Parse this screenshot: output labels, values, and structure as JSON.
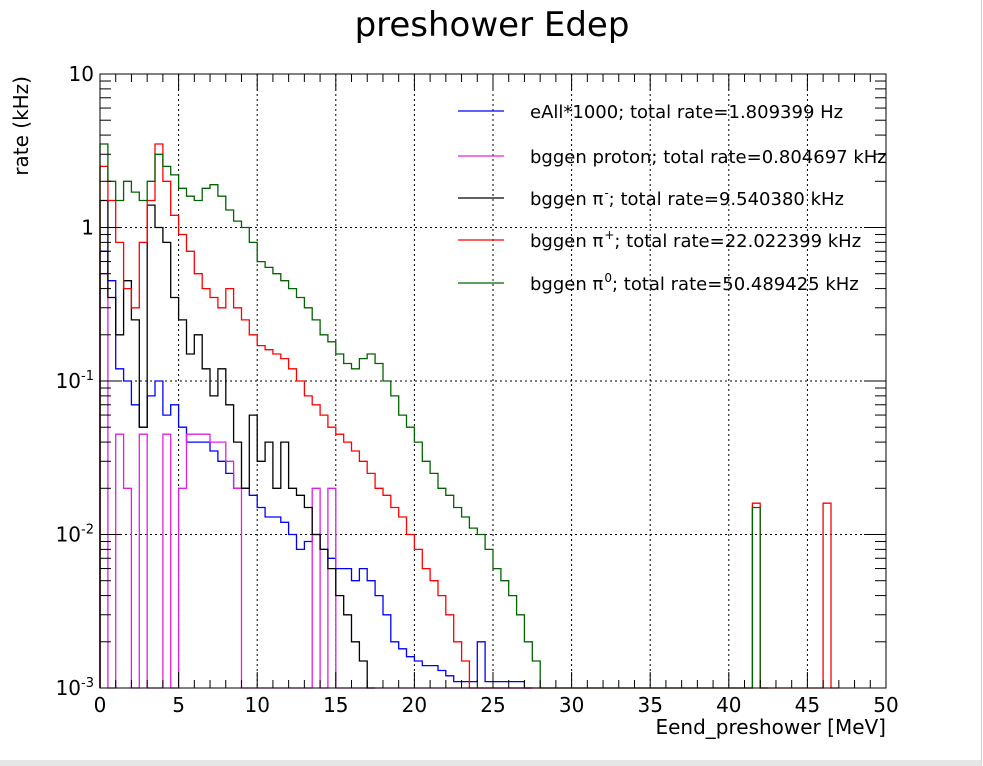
{
  "chart_data": {
    "type": "histogram",
    "title": "preshower Edep",
    "xlabel": "Eend_preshower [MeV]",
    "ylabel": "rate (kHz)",
    "xlim": [
      0,
      50
    ],
    "ylim": [
      0.001,
      10
    ],
    "yscale": "log",
    "grid": true,
    "legend_position": "top-right",
    "bin_width": 0.5,
    "x_ticks": [
      "0",
      "5",
      "10",
      "15",
      "20",
      "25",
      "30",
      "35",
      "40",
      "45",
      "50"
    ],
    "y_ticks": [
      {
        "value": 10,
        "base": "10",
        "exp": ""
      },
      {
        "value": 1,
        "base": "1",
        "exp": ""
      },
      {
        "value": 0.1,
        "base": "10",
        "exp": "-1"
      },
      {
        "value": 0.01,
        "base": "10",
        "exp": "-2"
      },
      {
        "value": 0.001,
        "base": "10",
        "exp": "-3"
      }
    ],
    "series": [
      {
        "name": "eAll*1000; total rate=1.809399 Hz",
        "label_parts": [
          [
            "eAll*1000; total rate=1.809399 Hz",
            ""
          ]
        ],
        "color": "#0000ff",
        "points": [
          [
            0.0,
            0.7
          ],
          [
            0.5,
            0.45
          ],
          [
            1.0,
            0.12
          ],
          [
            1.5,
            0.1
          ],
          [
            2.0,
            0.07
          ],
          [
            2.5,
            0.05
          ],
          [
            3.0,
            0.08
          ],
          [
            3.5,
            0.1
          ],
          [
            4.0,
            0.06
          ],
          [
            4.5,
            0.07
          ],
          [
            5.0,
            0.05
          ],
          [
            5.5,
            0.04
          ],
          [
            6.0,
            0.04
          ],
          [
            6.5,
            0.04
          ],
          [
            7.0,
            0.035
          ],
          [
            7.5,
            0.03
          ],
          [
            8.0,
            0.025
          ],
          [
            8.5,
            0.02
          ],
          [
            9.0,
            0.02
          ],
          [
            9.5,
            0.018
          ],
          [
            10.0,
            0.015
          ],
          [
            10.5,
            0.013
          ],
          [
            11.0,
            0.013
          ],
          [
            11.5,
            0.012
          ],
          [
            12.0,
            0.01
          ],
          [
            12.5,
            0.008
          ],
          [
            13.0,
            0.009
          ],
          [
            13.5,
            0.01
          ],
          [
            14.0,
            0.008
          ],
          [
            14.5,
            0.007
          ],
          [
            15.0,
            0.006
          ],
          [
            15.5,
            0.006
          ],
          [
            16.0,
            0.005
          ],
          [
            16.5,
            0.006
          ],
          [
            17.0,
            0.005
          ],
          [
            17.5,
            0.004
          ],
          [
            18.0,
            0.003
          ],
          [
            18.5,
            0.002
          ],
          [
            19.0,
            0.0018
          ],
          [
            19.5,
            0.0016
          ],
          [
            20.0,
            0.0015
          ],
          [
            20.5,
            0.0014
          ],
          [
            21.0,
            0.0014
          ],
          [
            21.5,
            0.0013
          ],
          [
            22.0,
            0.0012
          ],
          [
            22.5,
            0.0011
          ],
          [
            23.0,
            0.0011
          ],
          [
            23.5,
            0.0011
          ],
          [
            24.0,
            0.002
          ],
          [
            24.5,
            0.0011
          ],
          [
            25.0,
            0.0011
          ],
          [
            25.5,
            0.0011
          ],
          [
            26.0,
            0.0011
          ],
          [
            26.5,
            0.0011
          ],
          [
            27.0,
            0
          ]
        ]
      },
      {
        "name": "bggen proton; total rate=0.804697 kHz",
        "label_parts": [
          [
            "bggen proton; total rate=0.804697 kHz",
            ""
          ]
        ],
        "color": "#e020e0",
        "points": [
          [
            0.0,
            0.5
          ],
          [
            0.5,
            0.001
          ],
          [
            1.0,
            0.045
          ],
          [
            1.5,
            0.02
          ],
          [
            2.0,
            0.001
          ],
          [
            2.5,
            0.045
          ],
          [
            3.0,
            0.001
          ],
          [
            3.5,
            0.001
          ],
          [
            4.0,
            0.045
          ],
          [
            4.5,
            0.001
          ],
          [
            5.0,
            0.02
          ],
          [
            5.5,
            0.045
          ],
          [
            6.0,
            0.045
          ],
          [
            6.5,
            0.045
          ],
          [
            7.0,
            0.04
          ],
          [
            7.5,
            0.04
          ],
          [
            8.0,
            0.03
          ],
          [
            8.5,
            0.02
          ],
          [
            9.0,
            0.001
          ],
          [
            13.5,
            0.02
          ],
          [
            14.0,
            0.001
          ],
          [
            14.5,
            0.02
          ],
          [
            15.0,
            0.001
          ],
          [
            27.0,
            0.001
          ]
        ]
      },
      {
        "name": "bggen π⁻; total rate=9.540380 kHz",
        "label_parts": [
          [
            "bggen π",
            ""
          ],
          [
            "-",
            "sup"
          ],
          [
            "; total rate=9.540380 kHz",
            ""
          ]
        ],
        "color": "#000000",
        "points": [
          [
            0.0,
            1.5
          ],
          [
            0.5,
            0.35
          ],
          [
            1.0,
            0.2
          ],
          [
            1.5,
            0.45
          ],
          [
            2.0,
            0.25
          ],
          [
            2.5,
            0.05
          ],
          [
            3.0,
            1.4
          ],
          [
            3.5,
            1.0
          ],
          [
            4.0,
            0.8
          ],
          [
            4.5,
            0.35
          ],
          [
            5.0,
            0.25
          ],
          [
            5.5,
            0.15
          ],
          [
            6.0,
            0.2
          ],
          [
            6.5,
            0.12
          ],
          [
            7.0,
            0.08
          ],
          [
            7.5,
            0.12
          ],
          [
            8.0,
            0.07
          ],
          [
            8.5,
            0.04
          ],
          [
            9.0,
            0.02
          ],
          [
            9.5,
            0.06
          ],
          [
            10.0,
            0.03
          ],
          [
            10.5,
            0.04
          ],
          [
            11.0,
            0.02
          ],
          [
            11.5,
            0.04
          ],
          [
            12.0,
            0.02
          ],
          [
            12.5,
            0.018
          ],
          [
            13.0,
            0.015
          ],
          [
            13.5,
            0.01
          ],
          [
            14.0,
            0.008
          ],
          [
            14.5,
            0.006
          ],
          [
            15.0,
            0.004
          ],
          [
            15.5,
            0.003
          ],
          [
            16.0,
            0.002
          ],
          [
            16.5,
            0.0015
          ],
          [
            17.0,
            0.001
          ]
        ]
      },
      {
        "name": "bggen π⁺; total rate=22.022399 kHz",
        "label_parts": [
          [
            "bggen π",
            ""
          ],
          [
            "+",
            "sup"
          ],
          [
            "; total rate=22.022399 kHz",
            ""
          ]
        ],
        "color": "#ff0000",
        "points": [
          [
            0.0,
            2.5
          ],
          [
            0.5,
            1.5
          ],
          [
            1.0,
            0.8
          ],
          [
            1.5,
            0.4
          ],
          [
            2.0,
            0.3
          ],
          [
            2.5,
            0.8
          ],
          [
            3.0,
            1.5
          ],
          [
            3.5,
            3.5
          ],
          [
            4.0,
            2.0
          ],
          [
            4.5,
            1.2
          ],
          [
            5.0,
            0.9
          ],
          [
            5.5,
            0.7
          ],
          [
            6.0,
            0.5
          ],
          [
            6.5,
            0.4
          ],
          [
            7.0,
            0.35
          ],
          [
            7.5,
            0.3
          ],
          [
            8.0,
            0.4
          ],
          [
            8.5,
            0.3
          ],
          [
            9.0,
            0.25
          ],
          [
            9.5,
            0.2
          ],
          [
            10.0,
            0.17
          ],
          [
            10.5,
            0.16
          ],
          [
            11.0,
            0.15
          ],
          [
            11.5,
            0.14
          ],
          [
            12.0,
            0.12
          ],
          [
            12.5,
            0.1
          ],
          [
            13.0,
            0.08
          ],
          [
            13.5,
            0.07
          ],
          [
            14.0,
            0.06
          ],
          [
            14.5,
            0.05
          ],
          [
            15.0,
            0.045
          ],
          [
            15.5,
            0.04
          ],
          [
            16.0,
            0.035
          ],
          [
            16.5,
            0.03
          ],
          [
            17.0,
            0.025
          ],
          [
            17.5,
            0.02
          ],
          [
            18.0,
            0.018
          ],
          [
            18.5,
            0.015
          ],
          [
            19.0,
            0.013
          ],
          [
            19.5,
            0.01
          ],
          [
            20.0,
            0.008
          ],
          [
            20.5,
            0.006
          ],
          [
            21.0,
            0.005
          ],
          [
            21.5,
            0.004
          ],
          [
            22.0,
            0.003
          ],
          [
            22.5,
            0.002
          ],
          [
            23.0,
            0.0015
          ],
          [
            23.5,
            0.001
          ],
          [
            41.5,
            0.016
          ],
          [
            42.0,
            0.001
          ],
          [
            46.0,
            0.016
          ],
          [
            46.5,
            0.001
          ]
        ]
      },
      {
        "name": "bggen π⁰; total rate=50.489425 kHz",
        "label_parts": [
          [
            "bggen π",
            ""
          ],
          [
            "0",
            "sup"
          ],
          [
            "; total rate=50.489425 kHz",
            ""
          ]
        ],
        "color": "#006400",
        "points": [
          [
            0.0,
            3.5
          ],
          [
            0.5,
            2.0
          ],
          [
            1.0,
            1.5
          ],
          [
            1.5,
            2.0
          ],
          [
            2.0,
            1.7
          ],
          [
            2.5,
            1.5
          ],
          [
            3.0,
            2.0
          ],
          [
            3.5,
            3.0
          ],
          [
            4.0,
            2.5
          ],
          [
            4.5,
            2.2
          ],
          [
            5.0,
            1.8
          ],
          [
            5.5,
            1.6
          ],
          [
            6.0,
            1.5
          ],
          [
            6.5,
            1.8
          ],
          [
            7.0,
            1.9
          ],
          [
            7.5,
            1.6
          ],
          [
            8.0,
            1.3
          ],
          [
            8.5,
            1.1
          ],
          [
            9.0,
            1.0
          ],
          [
            9.5,
            0.8
          ],
          [
            10.0,
            0.6
          ],
          [
            10.5,
            0.55
          ],
          [
            11.0,
            0.5
          ],
          [
            11.5,
            0.45
          ],
          [
            12.0,
            0.4
          ],
          [
            12.5,
            0.35
          ],
          [
            13.0,
            0.3
          ],
          [
            13.5,
            0.25
          ],
          [
            14.0,
            0.2
          ],
          [
            14.5,
            0.18
          ],
          [
            15.0,
            0.15
          ],
          [
            15.5,
            0.13
          ],
          [
            16.0,
            0.12
          ],
          [
            16.5,
            0.14
          ],
          [
            17.0,
            0.15
          ],
          [
            17.5,
            0.13
          ],
          [
            18.0,
            0.1
          ],
          [
            18.5,
            0.08
          ],
          [
            19.0,
            0.06
          ],
          [
            19.5,
            0.05
          ],
          [
            20.0,
            0.04
          ],
          [
            20.5,
            0.03
          ],
          [
            21.0,
            0.025
          ],
          [
            21.5,
            0.02
          ],
          [
            22.0,
            0.018
          ],
          [
            22.5,
            0.015
          ],
          [
            23.0,
            0.013
          ],
          [
            23.5,
            0.011
          ],
          [
            24.0,
            0.01
          ],
          [
            24.5,
            0.008
          ],
          [
            25.0,
            0.006
          ],
          [
            25.5,
            0.005
          ],
          [
            26.0,
            0.004
          ],
          [
            26.5,
            0.003
          ],
          [
            27.0,
            0.002
          ],
          [
            27.5,
            0.0015
          ],
          [
            28.0,
            0.001
          ],
          [
            41.5,
            0.015
          ],
          [
            42.0,
            0.001
          ]
        ]
      }
    ]
  }
}
